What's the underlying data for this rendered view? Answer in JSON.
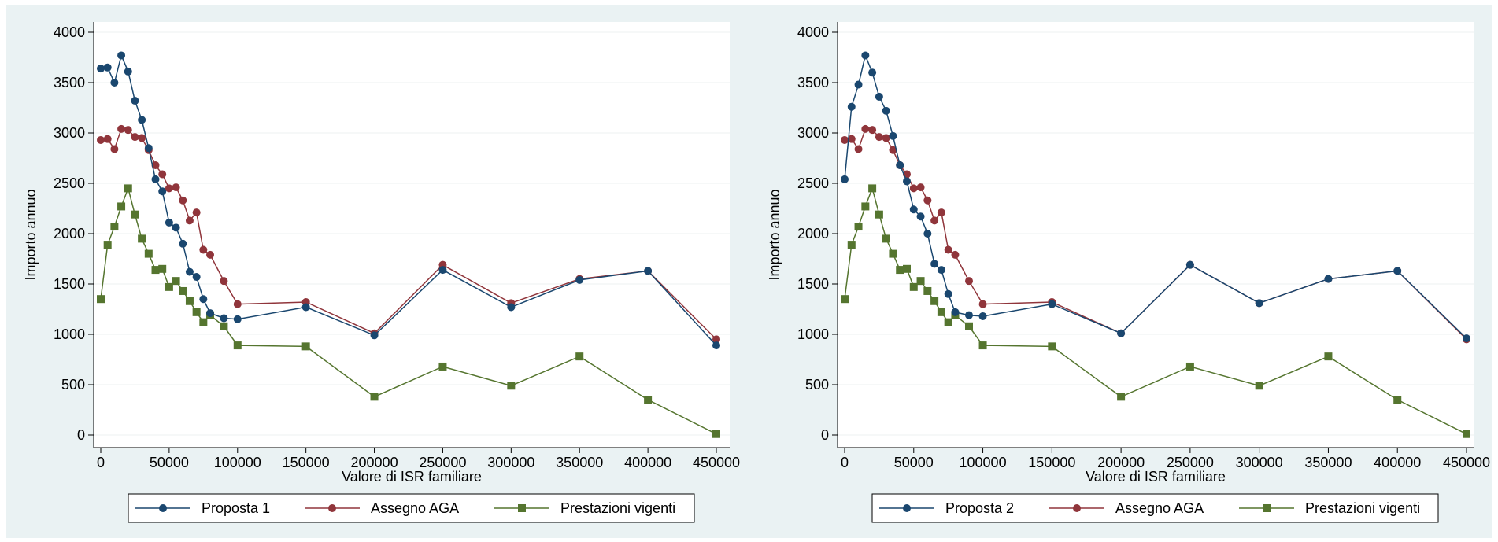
{
  "colors": {
    "background": "#eaf2f3",
    "plot_area": "#ffffff",
    "proposta": "#1a476f",
    "aga": "#90353b",
    "vigenti": "#55752f"
  },
  "chart_data": [
    {
      "type": "line",
      "xlabel": "Valore di ISR familiare",
      "ylabel": "Importo annuo",
      "xlim": [
        0,
        450000
      ],
      "ylim": [
        0,
        4000
      ],
      "x_ticks": [
        "0",
        "50000",
        "100000",
        "150000",
        "200000",
        "250000",
        "300000",
        "350000",
        "400000",
        "450000"
      ],
      "y_ticks": [
        "0",
        "500",
        "1000",
        "1500",
        "2000",
        "2500",
        "3000",
        "3500",
        "4000"
      ],
      "grid": true,
      "legend_position": "bottom",
      "series": [
        {
          "name": "Proposta 1",
          "marker": "circle",
          "color": "#1a476f",
          "x": [
            0,
            5000,
            10000,
            15000,
            20000,
            25000,
            30000,
            35000,
            40000,
            45000,
            50000,
            55000,
            60000,
            65000,
            70000,
            75000,
            80000,
            90000,
            100000,
            150000,
            200000,
            250000,
            300000,
            350000,
            400000,
            450000
          ],
          "y": [
            3640,
            3650,
            3500,
            3770,
            3610,
            3320,
            3130,
            2850,
            2540,
            2420,
            2110,
            2060,
            1900,
            1620,
            1570,
            1350,
            1210,
            1160,
            1150,
            1270,
            990,
            1640,
            1270,
            1540,
            1630,
            890
          ]
        },
        {
          "name": "Assegno AGA",
          "marker": "circle",
          "color": "#90353b",
          "x": [
            0,
            5000,
            10000,
            15000,
            20000,
            25000,
            30000,
            35000,
            40000,
            45000,
            50000,
            55000,
            60000,
            65000,
            70000,
            75000,
            80000,
            90000,
            100000,
            150000,
            200000,
            250000,
            300000,
            350000,
            400000,
            450000
          ],
          "y": [
            2930,
            2940,
            2840,
            3040,
            3030,
            2960,
            2950,
            2830,
            2680,
            2590,
            2450,
            2460,
            2330,
            2130,
            2210,
            1840,
            1790,
            1530,
            1300,
            1320,
            1010,
            1690,
            1310,
            1550,
            1630,
            950
          ]
        },
        {
          "name": "Prestazioni vigenti",
          "marker": "square",
          "color": "#55752f",
          "x": [
            0,
            5000,
            10000,
            15000,
            20000,
            25000,
            30000,
            35000,
            40000,
            45000,
            50000,
            55000,
            60000,
            65000,
            70000,
            75000,
            80000,
            90000,
            100000,
            150000,
            200000,
            250000,
            300000,
            350000,
            400000,
            450000
          ],
          "y": [
            1350,
            1890,
            2070,
            2270,
            2450,
            2190,
            1950,
            1800,
            1640,
            1650,
            1470,
            1530,
            1430,
            1330,
            1220,
            1120,
            1190,
            1080,
            890,
            880,
            380,
            680,
            490,
            780,
            350,
            10
          ]
        }
      ]
    },
    {
      "type": "line",
      "xlabel": "Valore di ISR familiare",
      "ylabel": "Importo annuo",
      "xlim": [
        0,
        450000
      ],
      "ylim": [
        0,
        4000
      ],
      "x_ticks": [
        "0",
        "50000",
        "100000",
        "150000",
        "200000",
        "250000",
        "300000",
        "350000",
        "400000",
        "450000"
      ],
      "y_ticks": [
        "0",
        "500",
        "1000",
        "1500",
        "2000",
        "2500",
        "3000",
        "3500",
        "4000"
      ],
      "grid": true,
      "legend_position": "bottom",
      "series": [
        {
          "name": "Proposta 2",
          "marker": "circle",
          "color": "#1a476f",
          "x": [
            0,
            5000,
            10000,
            15000,
            20000,
            25000,
            30000,
            35000,
            40000,
            45000,
            50000,
            55000,
            60000,
            65000,
            70000,
            75000,
            80000,
            90000,
            100000,
            150000,
            200000,
            250000,
            300000,
            350000,
            400000,
            450000
          ],
          "y": [
            2540,
            3260,
            3480,
            3770,
            3600,
            3360,
            3220,
            2970,
            2680,
            2520,
            2240,
            2170,
            2000,
            1700,
            1640,
            1400,
            1220,
            1190,
            1180,
            1300,
            1010,
            1690,
            1310,
            1550,
            1630,
            960
          ]
        },
        {
          "name": "Assegno AGA",
          "marker": "circle",
          "color": "#90353b",
          "x": [
            0,
            5000,
            10000,
            15000,
            20000,
            25000,
            30000,
            35000,
            40000,
            45000,
            50000,
            55000,
            60000,
            65000,
            70000,
            75000,
            80000,
            90000,
            100000,
            150000,
            200000,
            250000,
            300000,
            350000,
            400000,
            450000
          ],
          "y": [
            2930,
            2940,
            2840,
            3040,
            3030,
            2960,
            2950,
            2830,
            2680,
            2590,
            2450,
            2460,
            2330,
            2130,
            2210,
            1840,
            1790,
            1530,
            1300,
            1320,
            1010,
            1690,
            1310,
            1550,
            1630,
            950
          ]
        },
        {
          "name": "Prestazioni vigenti",
          "marker": "square",
          "color": "#55752f",
          "x": [
            0,
            5000,
            10000,
            15000,
            20000,
            25000,
            30000,
            35000,
            40000,
            45000,
            50000,
            55000,
            60000,
            65000,
            70000,
            75000,
            80000,
            90000,
            100000,
            150000,
            200000,
            250000,
            300000,
            350000,
            400000,
            450000
          ],
          "y": [
            1350,
            1890,
            2070,
            2270,
            2450,
            2190,
            1950,
            1800,
            1640,
            1650,
            1470,
            1530,
            1430,
            1330,
            1220,
            1120,
            1190,
            1080,
            890,
            880,
            380,
            680,
            490,
            780,
            350,
            10
          ]
        }
      ]
    }
  ]
}
